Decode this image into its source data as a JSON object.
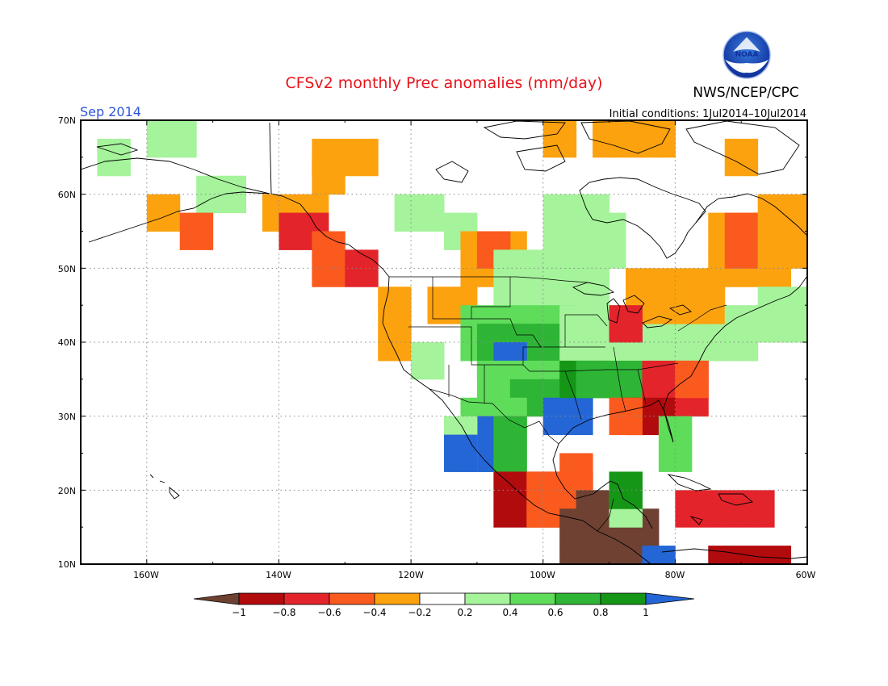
{
  "header": {
    "title": "CFSv2 monthly Prec anomalies (mm/day)",
    "month": "Sep 2014",
    "organization": "NWS/NCEP/CPC",
    "logo_text": "NOAA",
    "initial_conditions": "Initial conditions: 1Jul2014–10Jul2014"
  },
  "map": {
    "lat_ticks": [
      "70N",
      "60N",
      "50N",
      "40N",
      "30N",
      "20N",
      "10N"
    ],
    "lon_ticks": [
      "160W",
      "140W",
      "120W",
      "100W",
      "80W",
      "60W"
    ],
    "grid_style": "dotted"
  },
  "colorbar": {
    "tick_labels": [
      "−1",
      "−0.8",
      "−0.6",
      "−0.4",
      "−0.2",
      "0.2",
      "0.4",
      "0.6",
      "0.8",
      "1"
    ],
    "colors": {
      "lt_-1": "#6e4132",
      "-1_-0.8": "#b20b0e",
      "-0.8_-0.6": "#e3242b",
      "-0.6_-0.4": "#fb5a1e",
      "-0.4_-0.2": "#fca20f",
      "-0.2_0.2": "#ffffff",
      "0.2_0.4": "#a5f39b",
      "0.4_0.6": "#5fdc5a",
      "0.6_0.8": "#2fb536",
      "0.8_1": "#159617",
      "gt_1": "#2466d6"
    }
  }
}
